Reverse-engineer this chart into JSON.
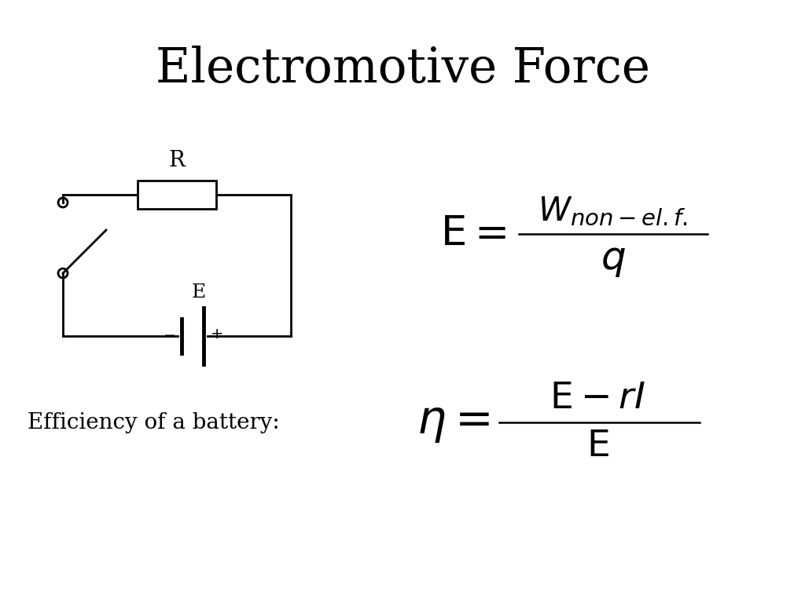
{
  "title": "Electromotive Force",
  "title_fontsize": 44,
  "bg_color": "#ffffff",
  "text_color": "#000000",
  "efficiency_label": "Efficiency of a battery:",
  "efficiency_label_fontsize": 20
}
